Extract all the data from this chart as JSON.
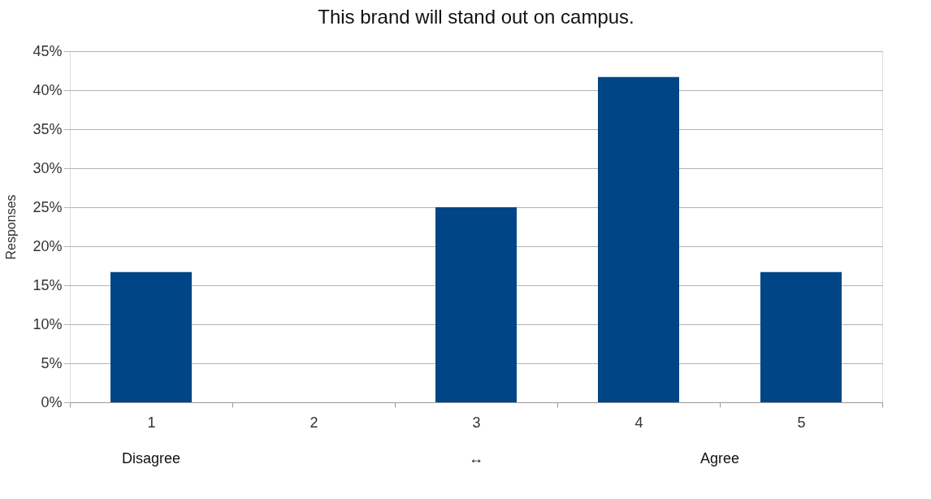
{
  "chart_data": {
    "type": "bar",
    "title": "This brand will stand out on campus.",
    "ylabel": "Responses",
    "categories": [
      "1",
      "2",
      "3",
      "4",
      "5"
    ],
    "values": [
      16.7,
      0,
      25,
      41.7,
      16.7
    ],
    "color": "#004586",
    "ylim": [
      0,
      45
    ],
    "yticks": [
      {
        "value": 0,
        "label": "0%"
      },
      {
        "value": 5,
        "label": "5%"
      },
      {
        "value": 10,
        "label": "10%"
      },
      {
        "value": 15,
        "label": "15%"
      },
      {
        "value": 20,
        "label": "20%"
      },
      {
        "value": 25,
        "label": "25%"
      },
      {
        "value": 30,
        "label": "30%"
      },
      {
        "value": 35,
        "label": "35%"
      },
      {
        "value": 40,
        "label": "40%"
      },
      {
        "value": 45,
        "label": "45%"
      }
    ],
    "grid": "y",
    "annotations": [
      "Disagree",
      "↔",
      "Agree"
    ]
  }
}
